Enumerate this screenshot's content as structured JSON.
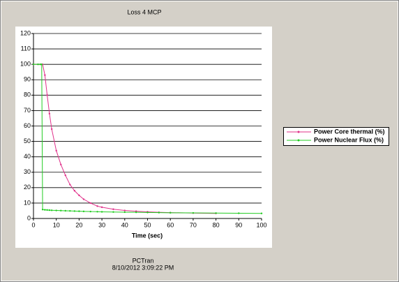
{
  "chart_data": {
    "type": "line",
    "title": "Loss 4 MCP",
    "xlabel": "Time (sec)",
    "x": [
      0,
      2,
      3,
      3.6,
      4,
      5,
      6,
      7,
      8,
      10,
      12,
      14,
      16,
      18,
      20,
      22,
      25,
      28,
      30,
      35,
      40,
      45,
      50,
      55,
      60,
      70,
      80,
      90,
      100
    ],
    "series": [
      {
        "name": "Power Core thermal (%)",
        "color": "#e0308a",
        "values": [
          100,
          100,
          100,
          100,
          100,
          93,
          80,
          68,
          58,
          44,
          35,
          28,
          22,
          18,
          15,
          12.5,
          10,
          8,
          7.3,
          6,
          5.2,
          4.7,
          4.3,
          4.0,
          3.8,
          3.5,
          3.3,
          null,
          null
        ]
      },
      {
        "name": "Power Nuclear Flux (%)",
        "color": "#22cc22",
        "values": [
          100,
          100,
          100,
          100,
          5.8,
          5.6,
          5.5,
          5.4,
          5.3,
          5.2,
          5.1,
          5.0,
          4.9,
          4.8,
          4.7,
          4.6,
          4.5,
          4.4,
          4.3,
          4.2,
          4.1,
          4.0,
          3.9,
          3.8,
          3.7,
          3.6,
          3.5,
          3.4,
          3.3
        ]
      }
    ],
    "xlim": [
      0,
      100
    ],
    "xticks": [
      0,
      10,
      20,
      30,
      40,
      50,
      60,
      70,
      80,
      90,
      100
    ],
    "ylim": [
      0,
      120
    ],
    "yticks": [
      0,
      10,
      20,
      30,
      40,
      50,
      60,
      70,
      80,
      90,
      100,
      110,
      120
    ],
    "grid": true,
    "legend": "right"
  },
  "footer": {
    "app": "PCTran",
    "timestamp": "8/10/2012 3:09:22 PM"
  }
}
